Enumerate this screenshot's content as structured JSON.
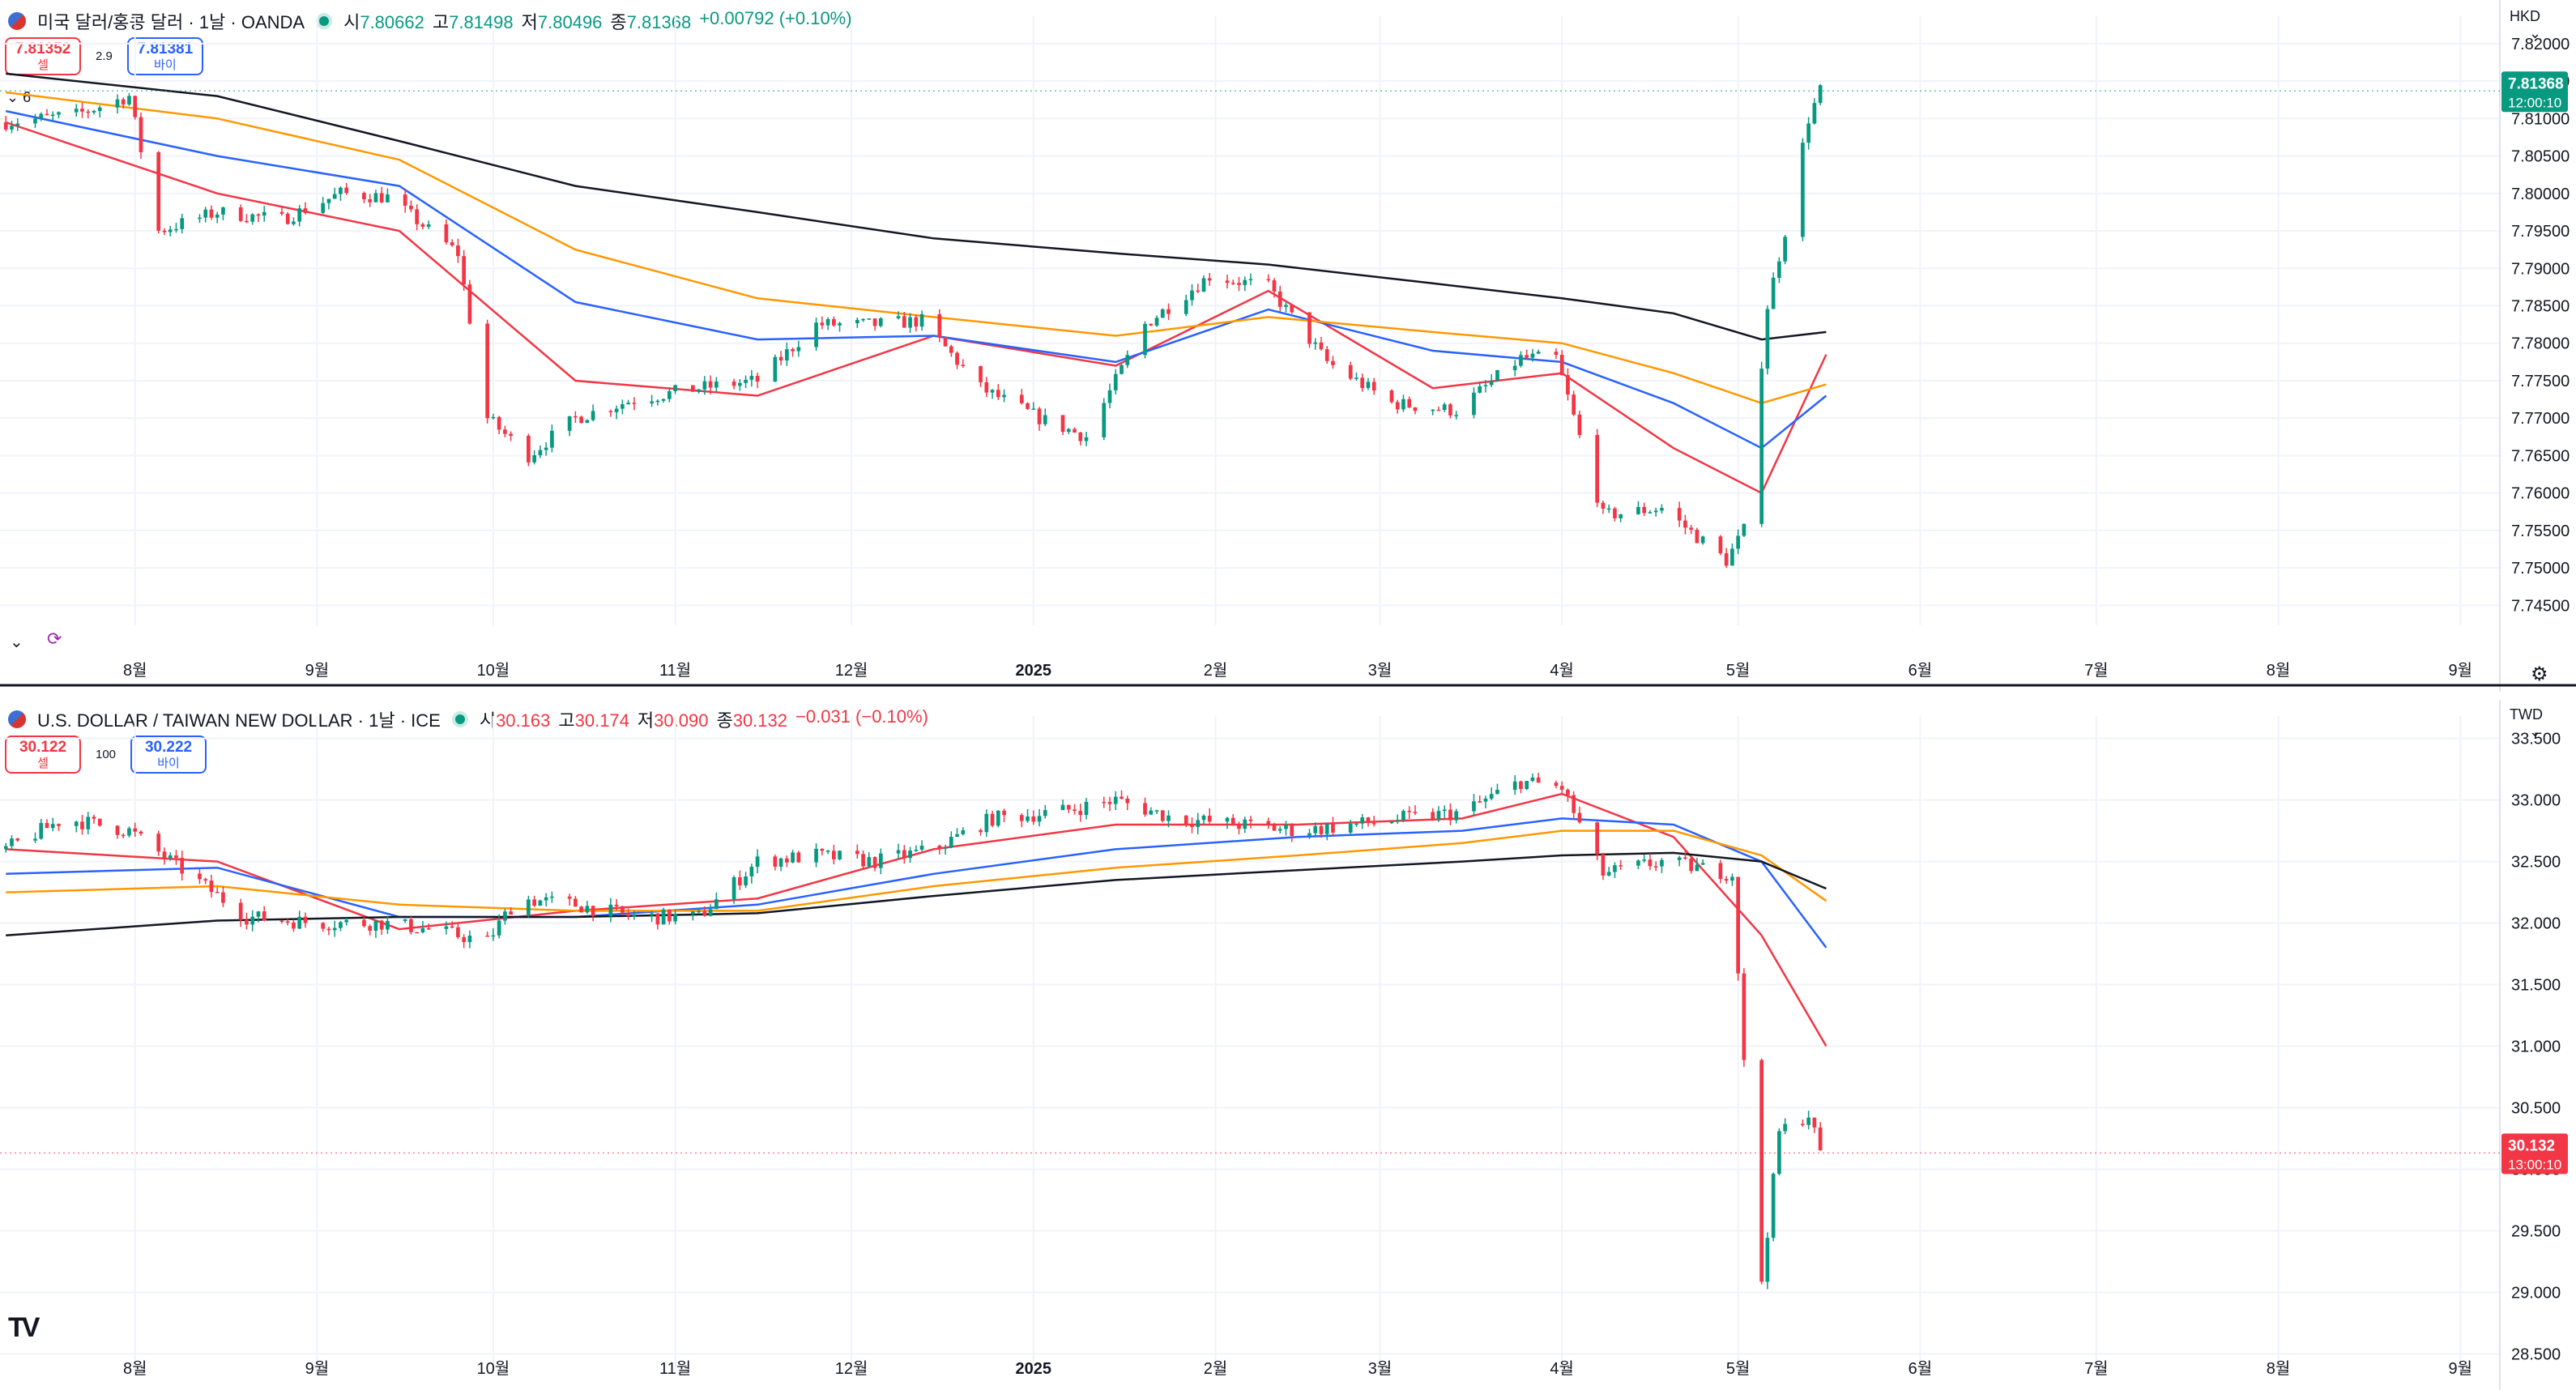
{
  "top": {
    "title": "미국 달러/홍콩 달러 · 1날 · OANDA",
    "ohlc": {
      "o_label": "시",
      "o": "7.80662",
      "h_label": "고",
      "h": "7.81498",
      "l_label": "저",
      "l": "7.80496",
      "c_label": "종",
      "c": "7.81368",
      "change": "+0.00792 (+0.10%)"
    },
    "sell_price": "7.81352",
    "sell_label": "셀",
    "buy_price": "7.81381",
    "buy_label": "바이",
    "spread": "2.9",
    "indicator_count": "6",
    "currency": "HKD",
    "last_price": "7.81368",
    "countdown": "12:00:10"
  },
  "bottom": {
    "title": "U.S. DOLLAR / TAIWAN NEW DOLLAR · 1날 · ICE",
    "ohlc": {
      "o_label": "시",
      "o": "30.163",
      "h_label": "고",
      "h": "30.174",
      "l_label": "저",
      "l": "30.090",
      "c_label": "종",
      "c": "30.132",
      "change": "−0.031 (−0.10%)"
    },
    "sell_price": "30.122",
    "sell_label": "셀",
    "buy_price": "30.222",
    "buy_label": "바이",
    "spread": "100",
    "currency": "TWD",
    "last_price": "30.132",
    "countdown": "13:00:10"
  },
  "colors": {
    "up": "#089981",
    "down": "#f23645",
    "ma_fast": "#f23645",
    "ma_mid": "#2962ff",
    "ma_slow": "#ff9800",
    "ma_long": "#131722"
  },
  "chart_data": [
    {
      "type": "candlestick",
      "title": "미국 달러/홍콩 달러 · 1날 · OANDA",
      "x_ticks": [
        "8월",
        "9월",
        "10월",
        "11월",
        "12월",
        "2025",
        "2월",
        "3월",
        "4월",
        "5월",
        "6월",
        "7월",
        "8월",
        "9월"
      ],
      "y_ticks": [
        "7.82000",
        "7.81500",
        "7.81000",
        "7.80500",
        "7.80000",
        "7.79500",
        "7.79000",
        "7.78500",
        "7.78000",
        "7.77500",
        "7.77000",
        "7.76500",
        "7.76000",
        "7.75500",
        "7.75000",
        "7.74500"
      ],
      "ylim": [
        7.7445,
        7.8215
      ],
      "x_range": [
        "2024-07-09",
        "2025-09-08"
      ],
      "closes_approx": [
        [
          "2024-07-10",
          7.8095
        ],
        [
          "2024-07-22",
          7.8105
        ],
        [
          "2024-07-31",
          7.813
        ],
        [
          "2024-08-05",
          7.795
        ],
        [
          "2024-08-15",
          7.7975
        ],
        [
          "2024-08-26",
          7.7965
        ],
        [
          "2024-09-05",
          7.8
        ],
        [
          "2024-09-13",
          7.7995
        ],
        [
          "2024-09-25",
          7.792
        ],
        [
          "2024-09-30",
          7.77
        ],
        [
          "2024-10-07",
          7.765
        ],
        [
          "2024-10-15",
          7.77
        ],
        [
          "2024-10-25",
          7.7725
        ],
        [
          "2024-11-05",
          7.774
        ],
        [
          "2024-11-15",
          7.775
        ],
        [
          "2024-11-25",
          7.7825
        ],
        [
          "2024-12-05",
          7.7825
        ],
        [
          "2024-12-13",
          7.783
        ],
        [
          "2024-12-23",
          7.774
        ],
        [
          "2025-01-02",
          7.77
        ],
        [
          "2025-01-10",
          7.7675
        ],
        [
          "2025-01-20",
          7.7825
        ],
        [
          "2025-01-31",
          7.789
        ],
        [
          "2025-02-10",
          7.7875
        ],
        [
          "2025-02-20",
          7.7775
        ],
        [
          "2025-03-03",
          7.772
        ],
        [
          "2025-03-14",
          7.771
        ],
        [
          "2025-03-25",
          7.778
        ],
        [
          "2025-03-31",
          7.778
        ],
        [
          "2025-04-08",
          7.757
        ],
        [
          "2025-04-18",
          7.758
        ],
        [
          "2025-04-29",
          7.751
        ],
        [
          "2025-05-02",
          7.755
        ],
        [
          "2025-05-06",
          7.785
        ],
        [
          "2025-05-09",
          7.795
        ],
        [
          "2025-05-13",
          7.81
        ],
        [
          "2025-05-15",
          7.8137
        ]
      ],
      "moving_averages": [
        {
          "name": "",
          "color": "#f23645",
          "points": [
            [
              "2024-07-10",
              7.8095
            ],
            [
              "2024-08-15",
              7.8
            ],
            [
              "2024-09-15",
              7.795
            ],
            [
              "2024-10-15",
              7.775
            ],
            [
              "2024-11-15",
              7.773
            ],
            [
              "2024-12-15",
              7.781
            ],
            [
              "2025-01-15",
              7.777
            ],
            [
              "2025-02-10",
              7.787
            ],
            [
              "2025-03-10",
              7.774
            ],
            [
              "2025-04-01",
              7.776
            ],
            [
              "2025-04-20",
              7.766
            ],
            [
              "2025-05-05",
              7.76
            ],
            [
              "2025-05-16",
              7.7785
            ]
          ]
        },
        {
          "name": "",
          "color": "#2962ff",
          "points": [
            [
              "2024-07-10",
              7.811
            ],
            [
              "2024-08-15",
              7.805
            ],
            [
              "2024-09-15",
              7.801
            ],
            [
              "2024-10-15",
              7.7855
            ],
            [
              "2024-11-15",
              7.7805
            ],
            [
              "2024-12-15",
              7.781
            ],
            [
              "2025-01-15",
              7.7775
            ],
            [
              "2025-02-10",
              7.7845
            ],
            [
              "2025-03-10",
              7.779
            ],
            [
              "2025-04-01",
              7.7775
            ],
            [
              "2025-04-20",
              7.772
            ],
            [
              "2025-05-05",
              7.766
            ],
            [
              "2025-05-16",
              7.773
            ]
          ]
        },
        {
          "name": "",
          "color": "#ff9800",
          "points": [
            [
              "2024-07-10",
              7.8135
            ],
            [
              "2024-08-15",
              7.81
            ],
            [
              "2024-09-15",
              7.8045
            ],
            [
              "2024-10-15",
              7.7925
            ],
            [
              "2024-11-15",
              7.786
            ],
            [
              "2024-12-15",
              7.7835
            ],
            [
              "2025-01-15",
              7.781
            ],
            [
              "2025-02-10",
              7.7835
            ],
            [
              "2025-03-10",
              7.7815
            ],
            [
              "2025-04-01",
              7.78
            ],
            [
              "2025-04-20",
              7.776
            ],
            [
              "2025-05-05",
              7.772
            ],
            [
              "2025-05-16",
              7.7745
            ]
          ]
        },
        {
          "name": "",
          "color": "#131722",
          "points": [
            [
              "2024-07-10",
              7.816
            ],
            [
              "2024-08-15",
              7.813
            ],
            [
              "2024-09-15",
              7.807
            ],
            [
              "2024-10-15",
              7.801
            ],
            [
              "2024-11-15",
              7.7975
            ],
            [
              "2024-12-15",
              7.794
            ],
            [
              "2025-01-15",
              7.792
            ],
            [
              "2025-02-10",
              7.7905
            ],
            [
              "2025-03-10",
              7.788
            ],
            [
              "2025-04-01",
              7.786
            ],
            [
              "2025-04-20",
              7.784
            ],
            [
              "2025-05-05",
              7.7805
            ],
            [
              "2025-05-16",
              7.7815
            ]
          ]
        }
      ],
      "last_price": 7.81368
    },
    {
      "type": "candlestick",
      "title": "U.S. DOLLAR / TAIWAN NEW DOLLAR · 1날 · ICE",
      "x_ticks": [
        "8월",
        "9월",
        "10월",
        "11월",
        "12월",
        "2025",
        "2월",
        "3월",
        "4월",
        "5월",
        "6월",
        "7월",
        "8월",
        "9월"
      ],
      "y_ticks": [
        "33.500",
        "33.000",
        "32.500",
        "32.000",
        "31.500",
        "31.000",
        "30.500",
        "30.000",
        "29.500",
        "29.000",
        "28.500"
      ],
      "ylim": [
        28.47,
        33.55
      ],
      "x_range": [
        "2024-07-09",
        "2025-09-08"
      ],
      "closes_approx": [
        [
          "2024-07-10",
          32.6
        ],
        [
          "2024-07-20",
          32.85
        ],
        [
          "2024-07-31",
          32.75
        ],
        [
          "2024-08-10",
          32.4
        ],
        [
          "2024-08-20",
          32.05
        ],
        [
          "2024-09-01",
          32.0
        ],
        [
          "2024-09-12",
          32.0
        ],
        [
          "2024-09-20",
          31.95
        ],
        [
          "2024-09-30",
          31.85
        ],
        [
          "2024-10-05",
          32.2
        ],
        [
          "2024-10-15",
          32.15
        ],
        [
          "2024-10-25",
          32.05
        ],
        [
          "2024-11-05",
          32.05
        ],
        [
          "2024-11-15",
          32.5
        ],
        [
          "2024-11-25",
          32.55
        ],
        [
          "2024-12-05",
          32.5
        ],
        [
          "2024-12-15",
          32.6
        ],
        [
          "2024-12-25",
          32.85
        ],
        [
          "2025-01-05",
          32.9
        ],
        [
          "2025-01-15",
          33.0
        ],
        [
          "2025-01-25",
          32.85
        ],
        [
          "2025-02-05",
          32.8
        ],
        [
          "2025-02-15",
          32.75
        ],
        [
          "2025-02-25",
          32.8
        ],
        [
          "2025-03-05",
          32.85
        ],
        [
          "2025-03-15",
          32.9
        ],
        [
          "2025-03-25",
          33.15
        ],
        [
          "2025-04-01",
          33.1
        ],
        [
          "2025-04-08",
          32.4
        ],
        [
          "2025-04-18",
          32.5
        ],
        [
          "2025-04-30",
          32.4
        ],
        [
          "2025-05-02",
          30.85
        ],
        [
          "2025-05-05",
          29.1
        ],
        [
          "2025-05-08",
          30.3
        ],
        [
          "2025-05-13",
          30.45
        ],
        [
          "2025-05-15",
          30.132
        ]
      ],
      "moving_averages": [
        {
          "name": "",
          "color": "#f23645",
          "points": [
            [
              "2024-07-10",
              32.6
            ],
            [
              "2024-08-15",
              32.5
            ],
            [
              "2024-09-15",
              31.95
            ],
            [
              "2024-10-15",
              32.1
            ],
            [
              "2024-11-15",
              32.2
            ],
            [
              "2024-12-15",
              32.6
            ],
            [
              "2025-01-15",
              32.8
            ],
            [
              "2025-02-15",
              32.8
            ],
            [
              "2025-03-15",
              32.85
            ],
            [
              "2025-04-01",
              33.05
            ],
            [
              "2025-04-20",
              32.7
            ],
            [
              "2025-05-05",
              31.9
            ],
            [
              "2025-05-16",
              31.0
            ]
          ]
        },
        {
          "name": "",
          "color": "#2962ff",
          "points": [
            [
              "2024-07-10",
              32.4
            ],
            [
              "2024-08-15",
              32.45
            ],
            [
              "2024-09-15",
              32.05
            ],
            [
              "2024-10-15",
              32.05
            ],
            [
              "2024-11-15",
              32.15
            ],
            [
              "2024-12-15",
              32.4
            ],
            [
              "2025-01-15",
              32.6
            ],
            [
              "2025-02-15",
              32.7
            ],
            [
              "2025-03-15",
              32.75
            ],
            [
              "2025-04-01",
              32.85
            ],
            [
              "2025-04-20",
              32.8
            ],
            [
              "2025-05-05",
              32.5
            ],
            [
              "2025-05-16",
              31.8
            ]
          ]
        },
        {
          "name": "",
          "color": "#ff9800",
          "points": [
            [
              "2024-07-10",
              32.25
            ],
            [
              "2024-08-15",
              32.3
            ],
            [
              "2024-09-15",
              32.15
            ],
            [
              "2024-10-15",
              32.1
            ],
            [
              "2024-11-15",
              32.1
            ],
            [
              "2024-12-15",
              32.3
            ],
            [
              "2025-01-15",
              32.45
            ],
            [
              "2025-02-15",
              32.55
            ],
            [
              "2025-03-15",
              32.65
            ],
            [
              "2025-04-01",
              32.75
            ],
            [
              "2025-04-20",
              32.75
            ],
            [
              "2025-05-05",
              32.55
            ],
            [
              "2025-05-16",
              32.18
            ]
          ]
        },
        {
          "name": "",
          "color": "#131722",
          "points": [
            [
              "2024-07-10",
              31.9
            ],
            [
              "2024-08-15",
              32.02
            ],
            [
              "2024-09-15",
              32.05
            ],
            [
              "2024-10-15",
              32.05
            ],
            [
              "2024-11-15",
              32.08
            ],
            [
              "2024-12-15",
              32.22
            ],
            [
              "2025-01-15",
              32.35
            ],
            [
              "2025-02-15",
              32.43
            ],
            [
              "2025-03-15",
              32.5
            ],
            [
              "2025-04-01",
              32.55
            ],
            [
              "2025-04-20",
              32.57
            ],
            [
              "2025-05-05",
              32.5
            ],
            [
              "2025-05-16",
              32.28
            ]
          ]
        }
      ],
      "last_price": 30.132
    }
  ]
}
